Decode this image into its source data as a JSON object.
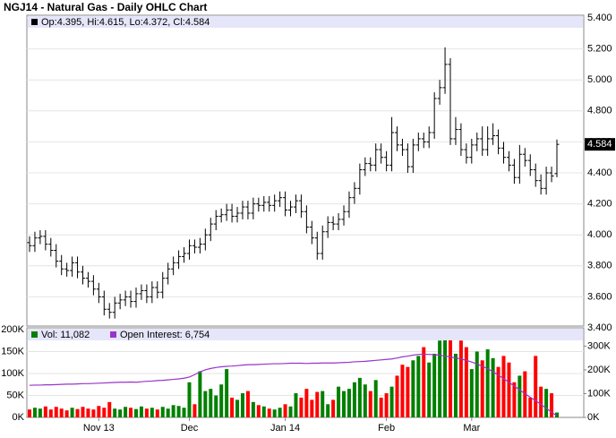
{
  "chart_data": [
    {
      "type": "ohlc",
      "title": "NGJ14 - Natural Gas - Daily OHLC Chart",
      "legend_label": "Op:4.395, Hi:4.615, Lo:4.372, Cl:4.584",
      "color": "#000000",
      "categories": [
        null,
        null,
        null,
        null,
        null,
        null,
        null,
        null,
        null,
        null,
        null,
        null,
        null,
        "Nov 13",
        null,
        null,
        null,
        null,
        null,
        null,
        null,
        null,
        null,
        null,
        null,
        null,
        null,
        null,
        null,
        null,
        "Dec",
        null,
        null,
        null,
        null,
        null,
        null,
        null,
        null,
        null,
        null,
        null,
        null,
        null,
        null,
        null,
        null,
        null,
        "Jan 14",
        null,
        null,
        null,
        null,
        null,
        null,
        null,
        null,
        null,
        null,
        null,
        null,
        null,
        null,
        null,
        null,
        null,
        null,
        "Feb",
        null,
        null,
        null,
        null,
        null,
        null,
        null,
        null,
        null,
        null,
        null,
        null,
        null,
        null,
        null,
        "Mar",
        null,
        null,
        null,
        null,
        null,
        null,
        null,
        null,
        null,
        null,
        null,
        null,
        null,
        null,
        null,
        null
      ],
      "open": [
        3.95,
        3.93,
        3.98,
        3.99,
        3.94,
        3.9,
        3.83,
        3.78,
        3.77,
        3.82,
        3.76,
        3.72,
        3.7,
        3.65,
        3.6,
        3.52,
        3.5,
        3.56,
        3.58,
        3.6,
        3.57,
        3.62,
        3.64,
        3.6,
        3.66,
        3.63,
        3.72,
        3.78,
        3.82,
        3.86,
        3.88,
        3.93,
        3.92,
        3.94,
        4.0,
        4.07,
        4.12,
        4.13,
        4.16,
        4.12,
        4.14,
        4.18,
        4.14,
        4.2,
        4.19,
        4.21,
        4.19,
        4.22,
        4.24,
        4.16,
        4.18,
        4.22,
        4.15,
        4.05,
        3.98,
        3.88,
        4.02,
        4.08,
        4.07,
        4.1,
        4.15,
        4.24,
        4.3,
        4.42,
        4.46,
        4.45,
        4.55,
        4.5,
        4.45,
        4.66,
        4.58,
        4.55,
        4.44,
        4.58,
        4.62,
        4.6,
        4.66,
        4.88,
        4.95,
        5.1,
        4.62,
        4.68,
        4.55,
        4.5,
        4.58,
        4.62,
        4.55,
        4.62,
        4.64,
        4.56,
        4.5,
        4.45,
        4.37,
        4.52,
        4.48,
        4.42,
        4.35,
        4.3,
        4.4,
        4.395
      ],
      "high": [
        3.99,
        4.02,
        4.03,
        4.03,
        3.98,
        3.94,
        3.87,
        3.82,
        3.86,
        3.86,
        3.8,
        3.76,
        3.74,
        3.69,
        3.64,
        3.56,
        3.6,
        3.62,
        3.64,
        3.64,
        3.66,
        3.68,
        3.68,
        3.7,
        3.7,
        3.76,
        3.82,
        3.86,
        3.9,
        3.92,
        3.97,
        3.97,
        3.98,
        4.04,
        4.11,
        4.16,
        4.17,
        4.2,
        4.2,
        4.18,
        4.22,
        4.22,
        4.24,
        4.24,
        4.25,
        4.25,
        4.26,
        4.28,
        4.28,
        4.22,
        4.26,
        4.26,
        4.19,
        4.09,
        4.02,
        4.06,
        4.12,
        4.12,
        4.14,
        4.19,
        4.28,
        4.34,
        4.46,
        4.5,
        4.5,
        4.59,
        4.59,
        4.54,
        4.76,
        4.7,
        4.62,
        4.59,
        4.62,
        4.66,
        4.66,
        4.7,
        4.92,
        5.0,
        5.21,
        5.14,
        4.76,
        4.72,
        4.59,
        4.62,
        4.66,
        4.7,
        4.7,
        4.72,
        4.68,
        4.6,
        4.54,
        4.49,
        4.58,
        4.56,
        4.52,
        4.46,
        4.39,
        4.44,
        4.44,
        4.615
      ],
      "low": [
        3.89,
        3.89,
        3.94,
        3.9,
        3.86,
        3.79,
        3.74,
        3.73,
        3.73,
        3.72,
        3.68,
        3.66,
        3.61,
        3.56,
        3.48,
        3.46,
        3.46,
        3.52,
        3.54,
        3.53,
        3.53,
        3.58,
        3.56,
        3.56,
        3.59,
        3.59,
        3.68,
        3.74,
        3.78,
        3.82,
        3.84,
        3.88,
        3.88,
        3.9,
        3.96,
        4.03,
        4.08,
        4.09,
        4.08,
        4.08,
        4.1,
        4.1,
        4.1,
        4.15,
        4.15,
        4.15,
        4.15,
        4.18,
        4.12,
        4.12,
        4.14,
        4.11,
        4.01,
        3.94,
        3.84,
        3.84,
        3.98,
        4.03,
        4.03,
        4.06,
        4.11,
        4.2,
        4.26,
        4.38,
        4.41,
        4.41,
        4.46,
        4.41,
        4.41,
        4.54,
        4.51,
        4.4,
        4.4,
        4.54,
        4.56,
        4.56,
        4.62,
        4.84,
        4.91,
        4.58,
        4.58,
        4.51,
        4.46,
        4.46,
        4.54,
        4.51,
        4.51,
        4.58,
        4.52,
        4.46,
        4.41,
        4.33,
        4.33,
        4.44,
        4.38,
        4.31,
        4.26,
        4.26,
        4.34,
        4.372
      ],
      "close": [
        3.93,
        3.98,
        3.99,
        3.94,
        3.9,
        3.83,
        3.78,
        3.77,
        3.82,
        3.76,
        3.72,
        3.7,
        3.65,
        3.6,
        3.52,
        3.5,
        3.56,
        3.58,
        3.6,
        3.57,
        3.62,
        3.64,
        3.6,
        3.66,
        3.63,
        3.72,
        3.78,
        3.82,
        3.86,
        3.88,
        3.93,
        3.92,
        3.94,
        4.0,
        4.07,
        4.12,
        4.13,
        4.16,
        4.12,
        4.14,
        4.18,
        4.14,
        4.2,
        4.19,
        4.21,
        4.19,
        4.22,
        4.24,
        4.16,
        4.18,
        4.22,
        4.15,
        4.05,
        3.98,
        3.88,
        4.02,
        4.08,
        4.07,
        4.1,
        4.15,
        4.24,
        4.3,
        4.42,
        4.46,
        4.45,
        4.55,
        4.5,
        4.45,
        4.66,
        4.58,
        4.55,
        4.44,
        4.58,
        4.62,
        4.6,
        4.66,
        4.88,
        4.95,
        5.1,
        4.62,
        4.68,
        4.55,
        4.5,
        4.58,
        4.62,
        4.55,
        4.62,
        4.64,
        4.56,
        4.5,
        4.45,
        4.37,
        4.52,
        4.48,
        4.42,
        4.35,
        4.3,
        4.4,
        4.38,
        4.584
      ],
      "ylim": [
        3.4,
        5.4
      ],
      "yticks": [
        {
          "value": 3.4,
          "label": "3.400"
        },
        {
          "value": 3.6,
          "label": "3.600"
        },
        {
          "value": 3.8,
          "label": "3.800"
        },
        {
          "value": 4.0,
          "label": "4.000"
        },
        {
          "value": 4.2,
          "label": "4.200"
        },
        {
          "value": 4.4,
          "label": "4.400"
        },
        {
          "value": 4.6,
          "label": "4.600"
        },
        {
          "value": 4.8,
          "label": "4.800"
        },
        {
          "value": 5.0,
          "label": "5.000"
        },
        {
          "value": 5.2,
          "label": "5.200"
        },
        {
          "value": 5.4,
          "label": "5.400"
        }
      ],
      "grid": true
    },
    {
      "type": "volume",
      "series": [
        {
          "name": "Vol: 11,082",
          "color": "#008000",
          "down_color": "#ff0000",
          "values": [
            18000,
            22000,
            20000,
            25000,
            18000,
            24000,
            20000,
            16000,
            22000,
            19000,
            24000,
            20000,
            18000,
            26000,
            22000,
            35000,
            20000,
            18000,
            24000,
            22000,
            19000,
            25000,
            20000,
            22000,
            18000,
            24000,
            20000,
            28000,
            26000,
            22000,
            80000,
            30000,
            105000,
            60000,
            65000,
            50000,
            75000,
            110000,
            45000,
            40000,
            55000,
            60000,
            35000,
            28000,
            25000,
            20000,
            18000,
            22000,
            30000,
            25000,
            55000,
            45000,
            65000,
            40000,
            58000,
            60000,
            30000,
            40000,
            70000,
            60000,
            65000,
            80000,
            90000,
            75000,
            60000,
            85000,
            45000,
            55000,
            70000,
            95000,
            120000,
            115000,
            130000,
            140000,
            160000,
            125000,
            145000,
            175000,
            190000,
            185000,
            145000,
            175000,
            160000,
            110000,
            150000,
            130000,
            155000,
            135000,
            115000,
            140000,
            125000,
            80000,
            95000,
            105000,
            45000,
            140000,
            70000,
            65000,
            55000,
            11082
          ]
        },
        {
          "name": "Open Interest: 6,754",
          "color": "#9933cc",
          "axis": "y2",
          "values": [
            135000,
            136000,
            136000,
            137000,
            137000,
            138000,
            139000,
            140000,
            140000,
            141000,
            142000,
            142000,
            143000,
            144000,
            145000,
            146000,
            147000,
            148000,
            148000,
            149000,
            148000,
            150000,
            152000,
            153000,
            155000,
            156000,
            158000,
            160000,
            162000,
            165000,
            170000,
            180000,
            192000,
            200000,
            206000,
            210000,
            213000,
            215000,
            216000,
            218000,
            220000,
            222000,
            222000,
            223000,
            224000,
            225000,
            226000,
            226000,
            227000,
            228000,
            228000,
            228000,
            227000,
            228000,
            228000,
            229000,
            229000,
            229000,
            230000,
            231000,
            232000,
            234000,
            235000,
            236000,
            238000,
            240000,
            242000,
            244000,
            246000,
            250000,
            255000,
            258000,
            262000,
            265000,
            266000,
            265000,
            264000,
            262000,
            258000,
            255000,
            250000,
            246000,
            240000,
            233000,
            225000,
            215000,
            205000,
            192000,
            178000,
            163000,
            148000,
            132000,
            116000,
            100000,
            85000,
            70000,
            55000,
            38000,
            22000,
            6754
          ]
        }
      ],
      "ylim": [
        0,
        204000
      ],
      "yticks": [
        {
          "value": 0,
          "label": "0K"
        },
        {
          "value": 50000,
          "label": "50K"
        },
        {
          "value": 100000,
          "label": "100K"
        },
        {
          "value": 150000,
          "label": "150K"
        },
        {
          "value": 200000,
          "label": "200K"
        }
      ],
      "y2lim": [
        0,
        377000
      ],
      "y2ticks": [
        {
          "value": 0,
          "label": "0K"
        },
        {
          "value": 100000,
          "label": "100K"
        },
        {
          "value": 200000,
          "label": "200K"
        },
        {
          "value": 300000,
          "label": "300K"
        }
      ],
      "grid": true
    }
  ]
}
